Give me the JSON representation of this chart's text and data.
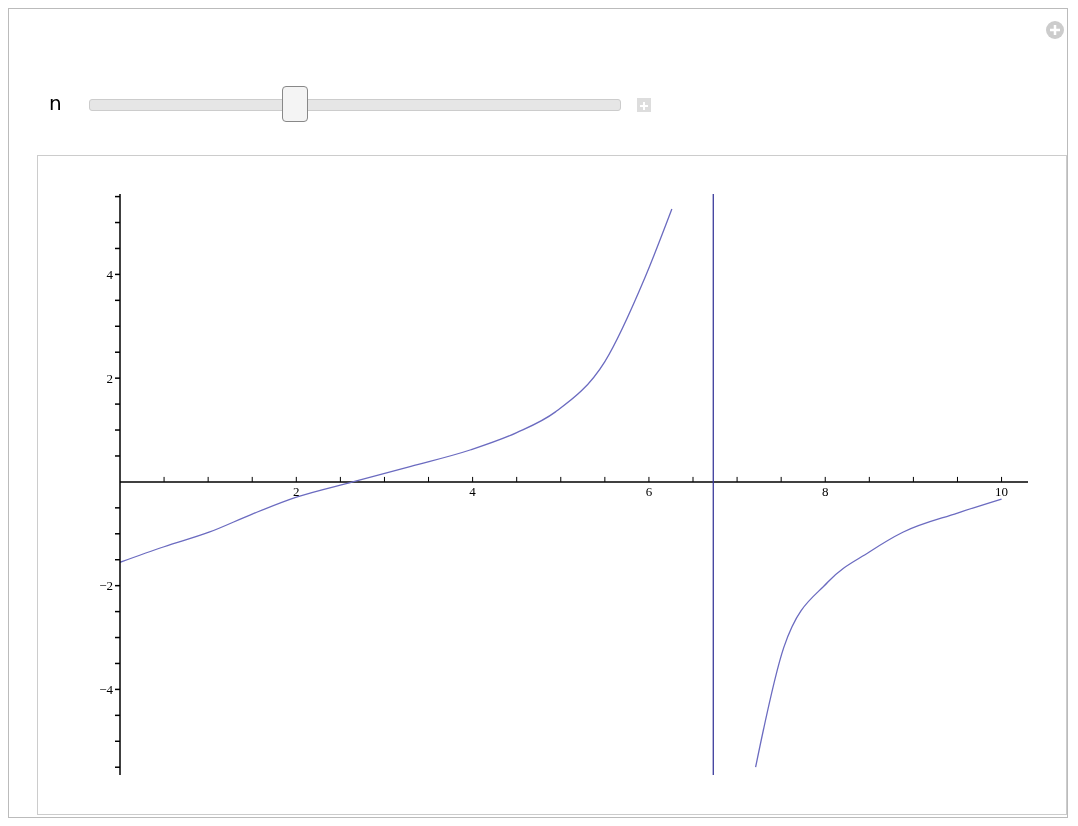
{
  "chart_data": {
    "type": "line",
    "annotations": [
      "n"
    ],
    "x": [
      0,
      0.5,
      1.01,
      1.5,
      2.01,
      2.64,
      3.3,
      3.98,
      4.5,
      4.94,
      5.5,
      5.96,
      6.26,
      6.5,
      7.0,
      7.21,
      7.53,
      8.03,
      8.5,
      8.88,
      9.5,
      10
    ],
    "series": [
      {
        "color": "#6b6bc0",
        "values": [
          -1.55,
          -1.25,
          -0.97,
          -0.62,
          -0.29,
          0,
          0.3,
          0.62,
          0.95,
          1.35,
          2.32,
          3.96,
          5.26,
          null,
          null,
          -5.5,
          -3.19,
          -1.93,
          -1.35,
          -0.97,
          -0.6,
          -0.33
        ]
      }
    ],
    "xlim": [
      0,
      10.3
    ],
    "ylim": [
      -5.65,
      5.55
    ],
    "xticks": [
      {
        "value": 0.5,
        "label": null
      },
      {
        "value": 1,
        "label": null
      },
      {
        "value": 1.5,
        "label": null
      },
      2,
      {
        "value": 2.5,
        "label": null
      },
      {
        "value": 3,
        "label": null
      },
      {
        "value": 3.5,
        "label": null
      },
      4,
      {
        "value": 4.5,
        "label": null
      },
      {
        "value": 5,
        "label": null
      },
      {
        "value": 5.5,
        "label": null
      },
      6,
      {
        "value": 6.5,
        "label": null
      },
      {
        "value": 7,
        "label": null
      },
      {
        "value": 7.5,
        "label": null
      },
      8,
      {
        "value": 8.5,
        "label": null
      },
      {
        "value": 9,
        "label": null
      },
      {
        "value": 9.5,
        "label": null
      },
      10
    ],
    "yticks": [
      {
        "value": -5.5,
        "label": null
      },
      {
        "value": -5,
        "label": null
      },
      {
        "value": -4.5,
        "label": null
      },
      {
        "value": -4,
        "label": "−4"
      },
      {
        "value": -3.5,
        "label": null
      },
      {
        "value": -3,
        "label": null
      },
      {
        "value": -2.5,
        "label": null
      },
      {
        "value": -2,
        "label": "−2"
      },
      {
        "value": -1.5,
        "label": null
      },
      {
        "value": -1,
        "label": null
      },
      {
        "value": -0.5,
        "label": null
      },
      {
        "value": 0.5,
        "label": null
      },
      {
        "value": 1,
        "label": null
      },
      {
        "value": 1.5,
        "label": null
      },
      2,
      {
        "value": 2.5,
        "label": null
      },
      {
        "value": 3,
        "label": null
      },
      {
        "value": 3.5,
        "label": null
      },
      4,
      {
        "value": 4.5,
        "label": null
      },
      {
        "value": 5,
        "label": null
      },
      {
        "value": 5.5,
        "label": null
      }
    ],
    "ref_lines": [
      {
        "axis": "x",
        "value": 6.73,
        "color": "#3b3b9c"
      }
    ],
    "grid": false,
    "legend": false,
    "marker": "none",
    "line_style": "solid"
  }
}
